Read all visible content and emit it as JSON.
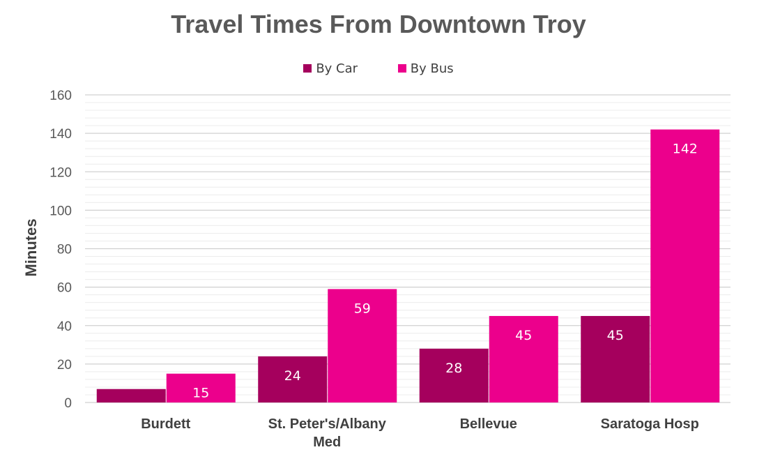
{
  "chart_data": {
    "type": "bar",
    "title": "Travel Times From Downtown Troy",
    "xlabel": "",
    "ylabel": "Minutes",
    "ylim": [
      0,
      160
    ],
    "yticks": [
      0,
      20,
      40,
      60,
      80,
      100,
      120,
      140,
      160
    ],
    "categories": [
      "Burdett",
      "St. Peter's/Albany Med",
      "Bellevue",
      "Saratoga Hosp"
    ],
    "series": [
      {
        "name": "By Car",
        "color": "#a5005d",
        "values": [
          7,
          24,
          28,
          45
        ],
        "labels": [
          "",
          "24",
          "28",
          "45"
        ]
      },
      {
        "name": "By Bus",
        "color": "#ec008c",
        "values": [
          15,
          59,
          45,
          142
        ],
        "labels": [
          "15",
          "59",
          "45",
          "142"
        ]
      }
    ],
    "grid": true,
    "legend_position": "top"
  }
}
